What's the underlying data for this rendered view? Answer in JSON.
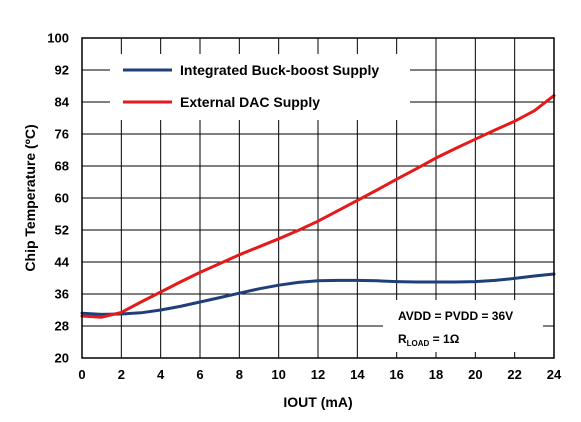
{
  "chart_data": {
    "type": "line",
    "title": "",
    "xlabel": "IOUT (mA)",
    "ylabel": "Chip Temperature (ºC)",
    "xlim": [
      0,
      24
    ],
    "ylim": [
      20,
      100
    ],
    "x_ticks": [
      0,
      2,
      4,
      6,
      8,
      10,
      12,
      14,
      16,
      18,
      20,
      22,
      24
    ],
    "y_ticks": [
      20,
      28,
      36,
      44,
      52,
      60,
      68,
      76,
      84,
      92,
      100
    ],
    "grid": true,
    "legend_position": "top-left",
    "series": [
      {
        "name": "Integrated Buck-boost Supply",
        "color": "#1F3F7A",
        "x": [
          0,
          1,
          2,
          3,
          4,
          5,
          6,
          7,
          8,
          9,
          10,
          11,
          12,
          13,
          14,
          15,
          16,
          17,
          18,
          19,
          20,
          21,
          22,
          23,
          24
        ],
        "y": [
          31.2,
          30.9,
          31.0,
          31.3,
          32.0,
          32.9,
          34.0,
          35.1,
          36.2,
          37.3,
          38.2,
          38.9,
          39.3,
          39.4,
          39.4,
          39.3,
          39.1,
          39.0,
          39.0,
          39.0,
          39.1,
          39.4,
          39.9,
          40.5,
          41.0
        ]
      },
      {
        "name": "External DAC Supply",
        "color": "#E51A1A",
        "x": [
          0,
          1,
          2,
          3,
          4,
          5,
          6,
          7,
          8,
          9,
          10,
          11,
          12,
          13,
          14,
          15,
          16,
          17,
          18,
          19,
          20,
          21,
          22,
          23,
          24
        ],
        "y": [
          30.5,
          30.2,
          31.4,
          34.0,
          36.5,
          39.0,
          41.4,
          43.6,
          45.8,
          47.8,
          49.8,
          51.9,
          54.2,
          56.8,
          59.4,
          62.0,
          64.7,
          67.3,
          70.0,
          72.4,
          74.7,
          77.0,
          79.2,
          81.8,
          85.6
        ]
      }
    ],
    "annotations": [
      {
        "id": "supply",
        "text": "AVDD = PVDD = 36V"
      },
      {
        "id": "rload",
        "main": "R",
        "sub": "LOAD",
        "rest": " = 1Ω"
      }
    ]
  }
}
